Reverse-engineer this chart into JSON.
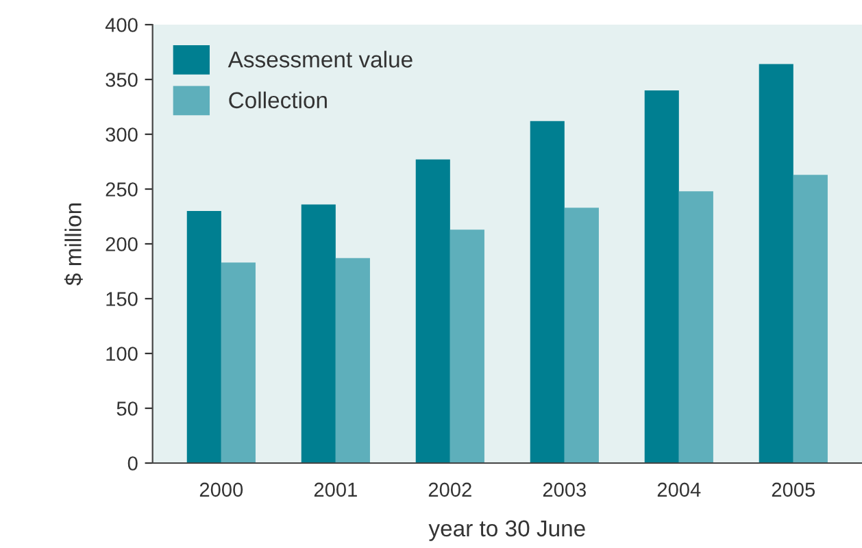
{
  "chart_data": {
    "type": "bar",
    "xlabel": "year to 30 June",
    "ylabel": "$ million",
    "categories": [
      "2000",
      "2001",
      "2002",
      "2003",
      "2004",
      "2005"
    ],
    "series": [
      {
        "name": "Assessment value",
        "color": "#007f91",
        "values": [
          230,
          236,
          277,
          312,
          340,
          364
        ]
      },
      {
        "name": "Collection",
        "color": "#5eafbb",
        "values": [
          183,
          187,
          213,
          233,
          248,
          263
        ]
      }
    ],
    "ylim": [
      0,
      400
    ],
    "yticks": [
      0,
      50,
      100,
      150,
      200,
      250,
      300,
      350,
      400
    ],
    "grid": false,
    "legend": "top left"
  }
}
